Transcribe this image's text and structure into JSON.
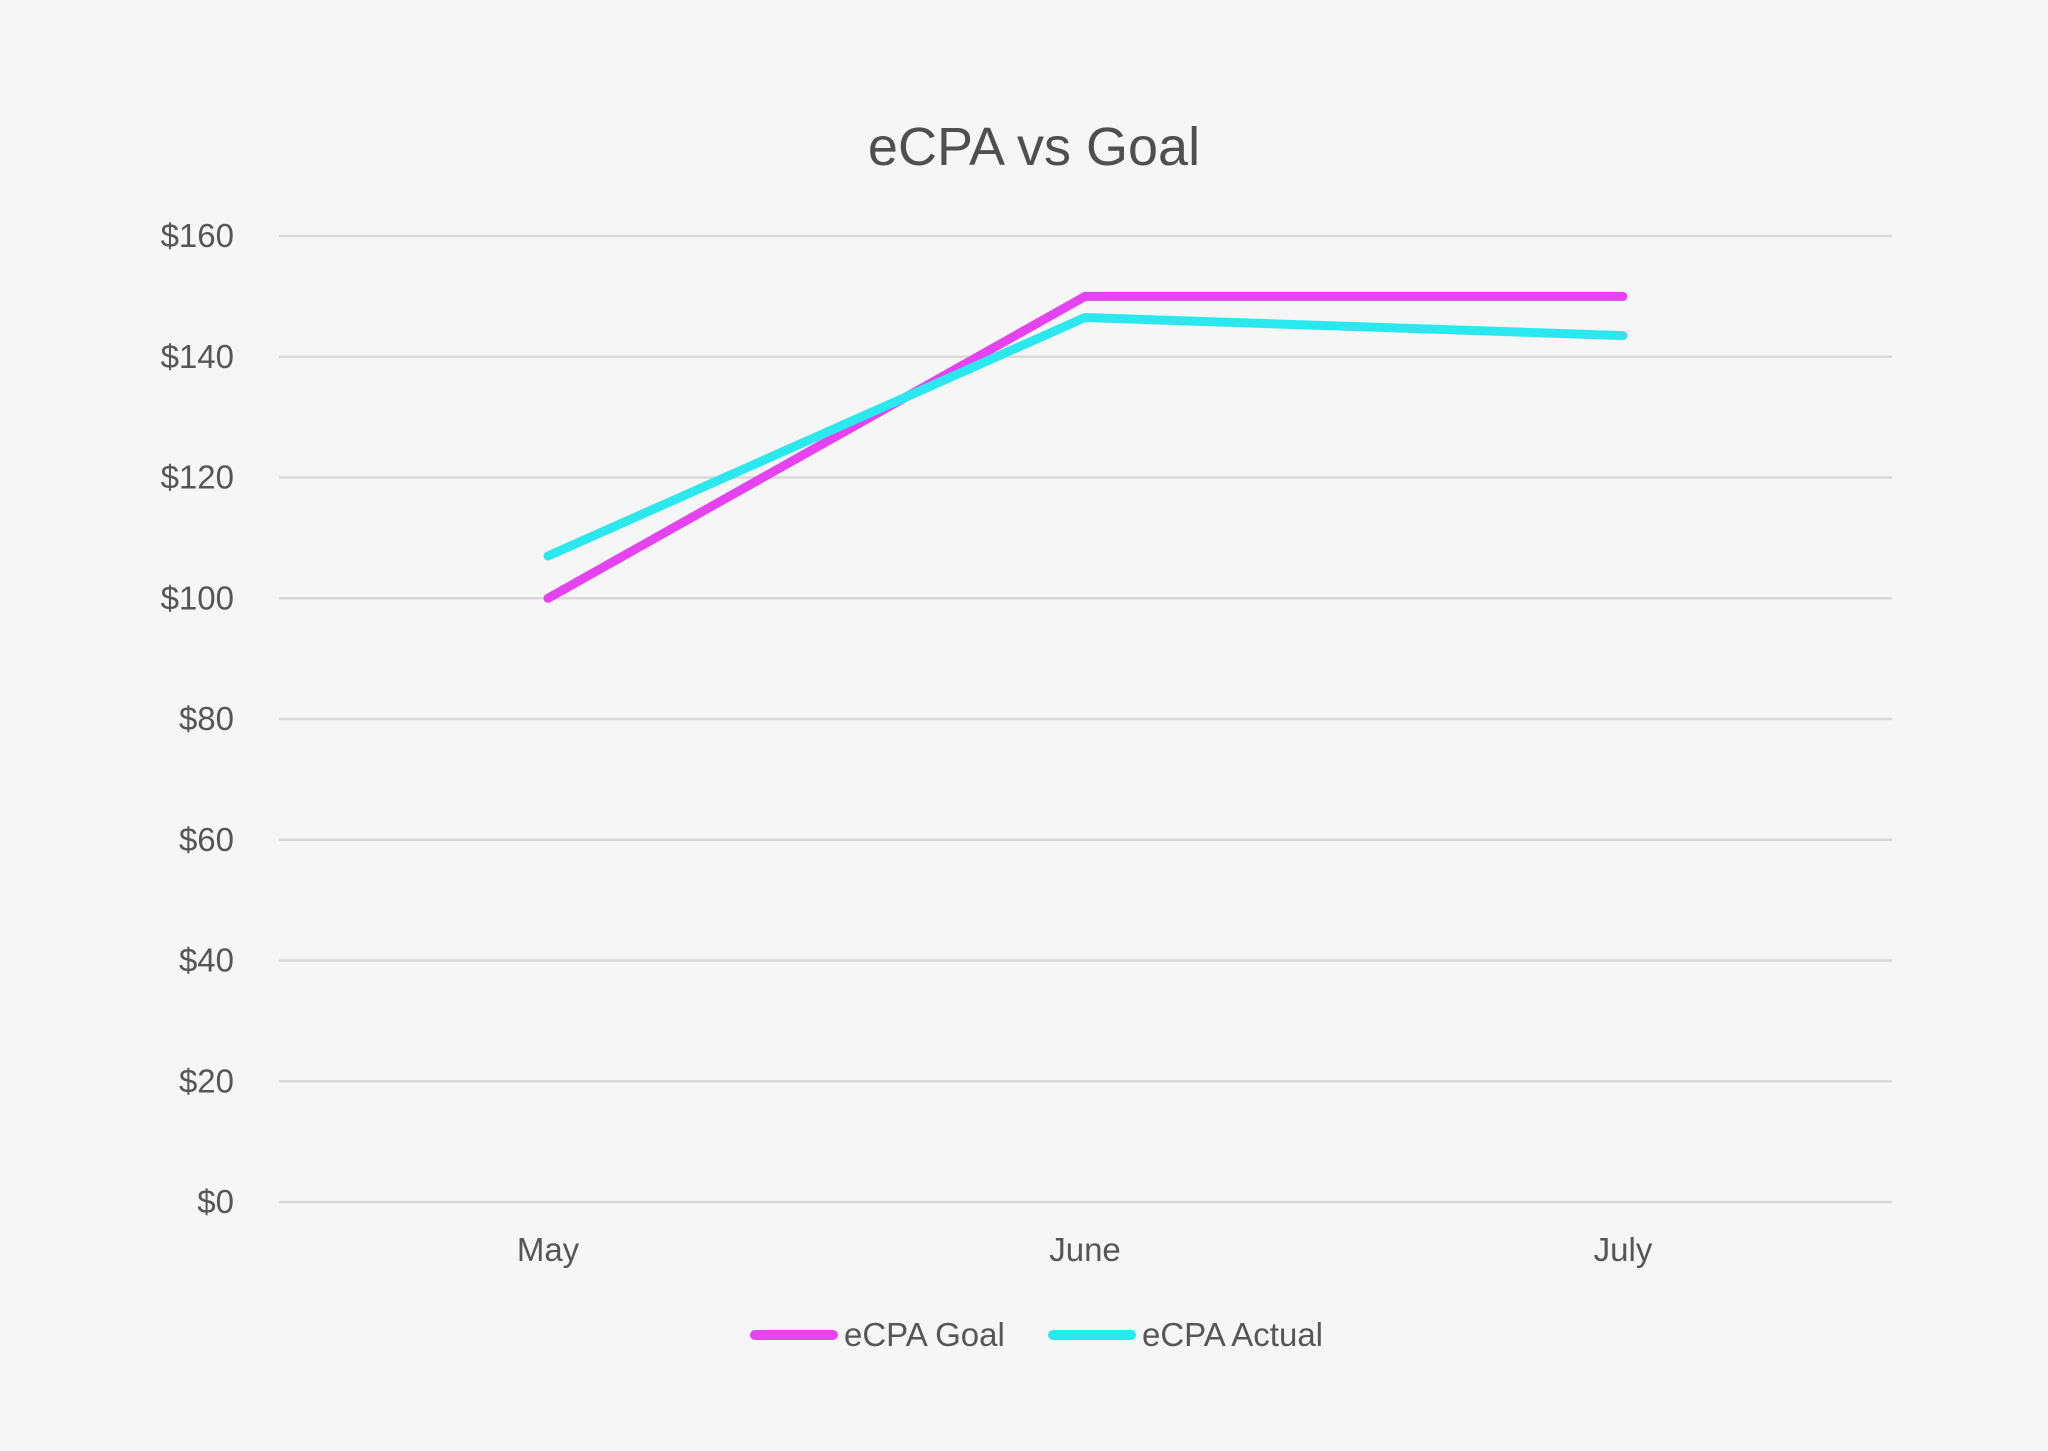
{
  "chart_data": {
    "type": "line",
    "title": "eCPA vs Goal",
    "xlabel": "",
    "ylabel": "",
    "categories": [
      "May",
      "June",
      "July"
    ],
    "series": [
      {
        "name": "eCPA Goal",
        "values": [
          100,
          150,
          150
        ],
        "color": "#e543f0"
      },
      {
        "name": "eCPA Actual",
        "values": [
          107,
          146.5,
          143.5
        ],
        "color": "#2ae8ee"
      }
    ],
    "ylim": [
      0,
      160
    ],
    "yticks": [
      0,
      20,
      40,
      60,
      80,
      100,
      120,
      140,
      160
    ],
    "ytick_labels": [
      "$0",
      "$20",
      "$40",
      "$60",
      "$80",
      "$100",
      "$120",
      "$140",
      "$160"
    ],
    "grid": true,
    "legend": "bottom"
  }
}
